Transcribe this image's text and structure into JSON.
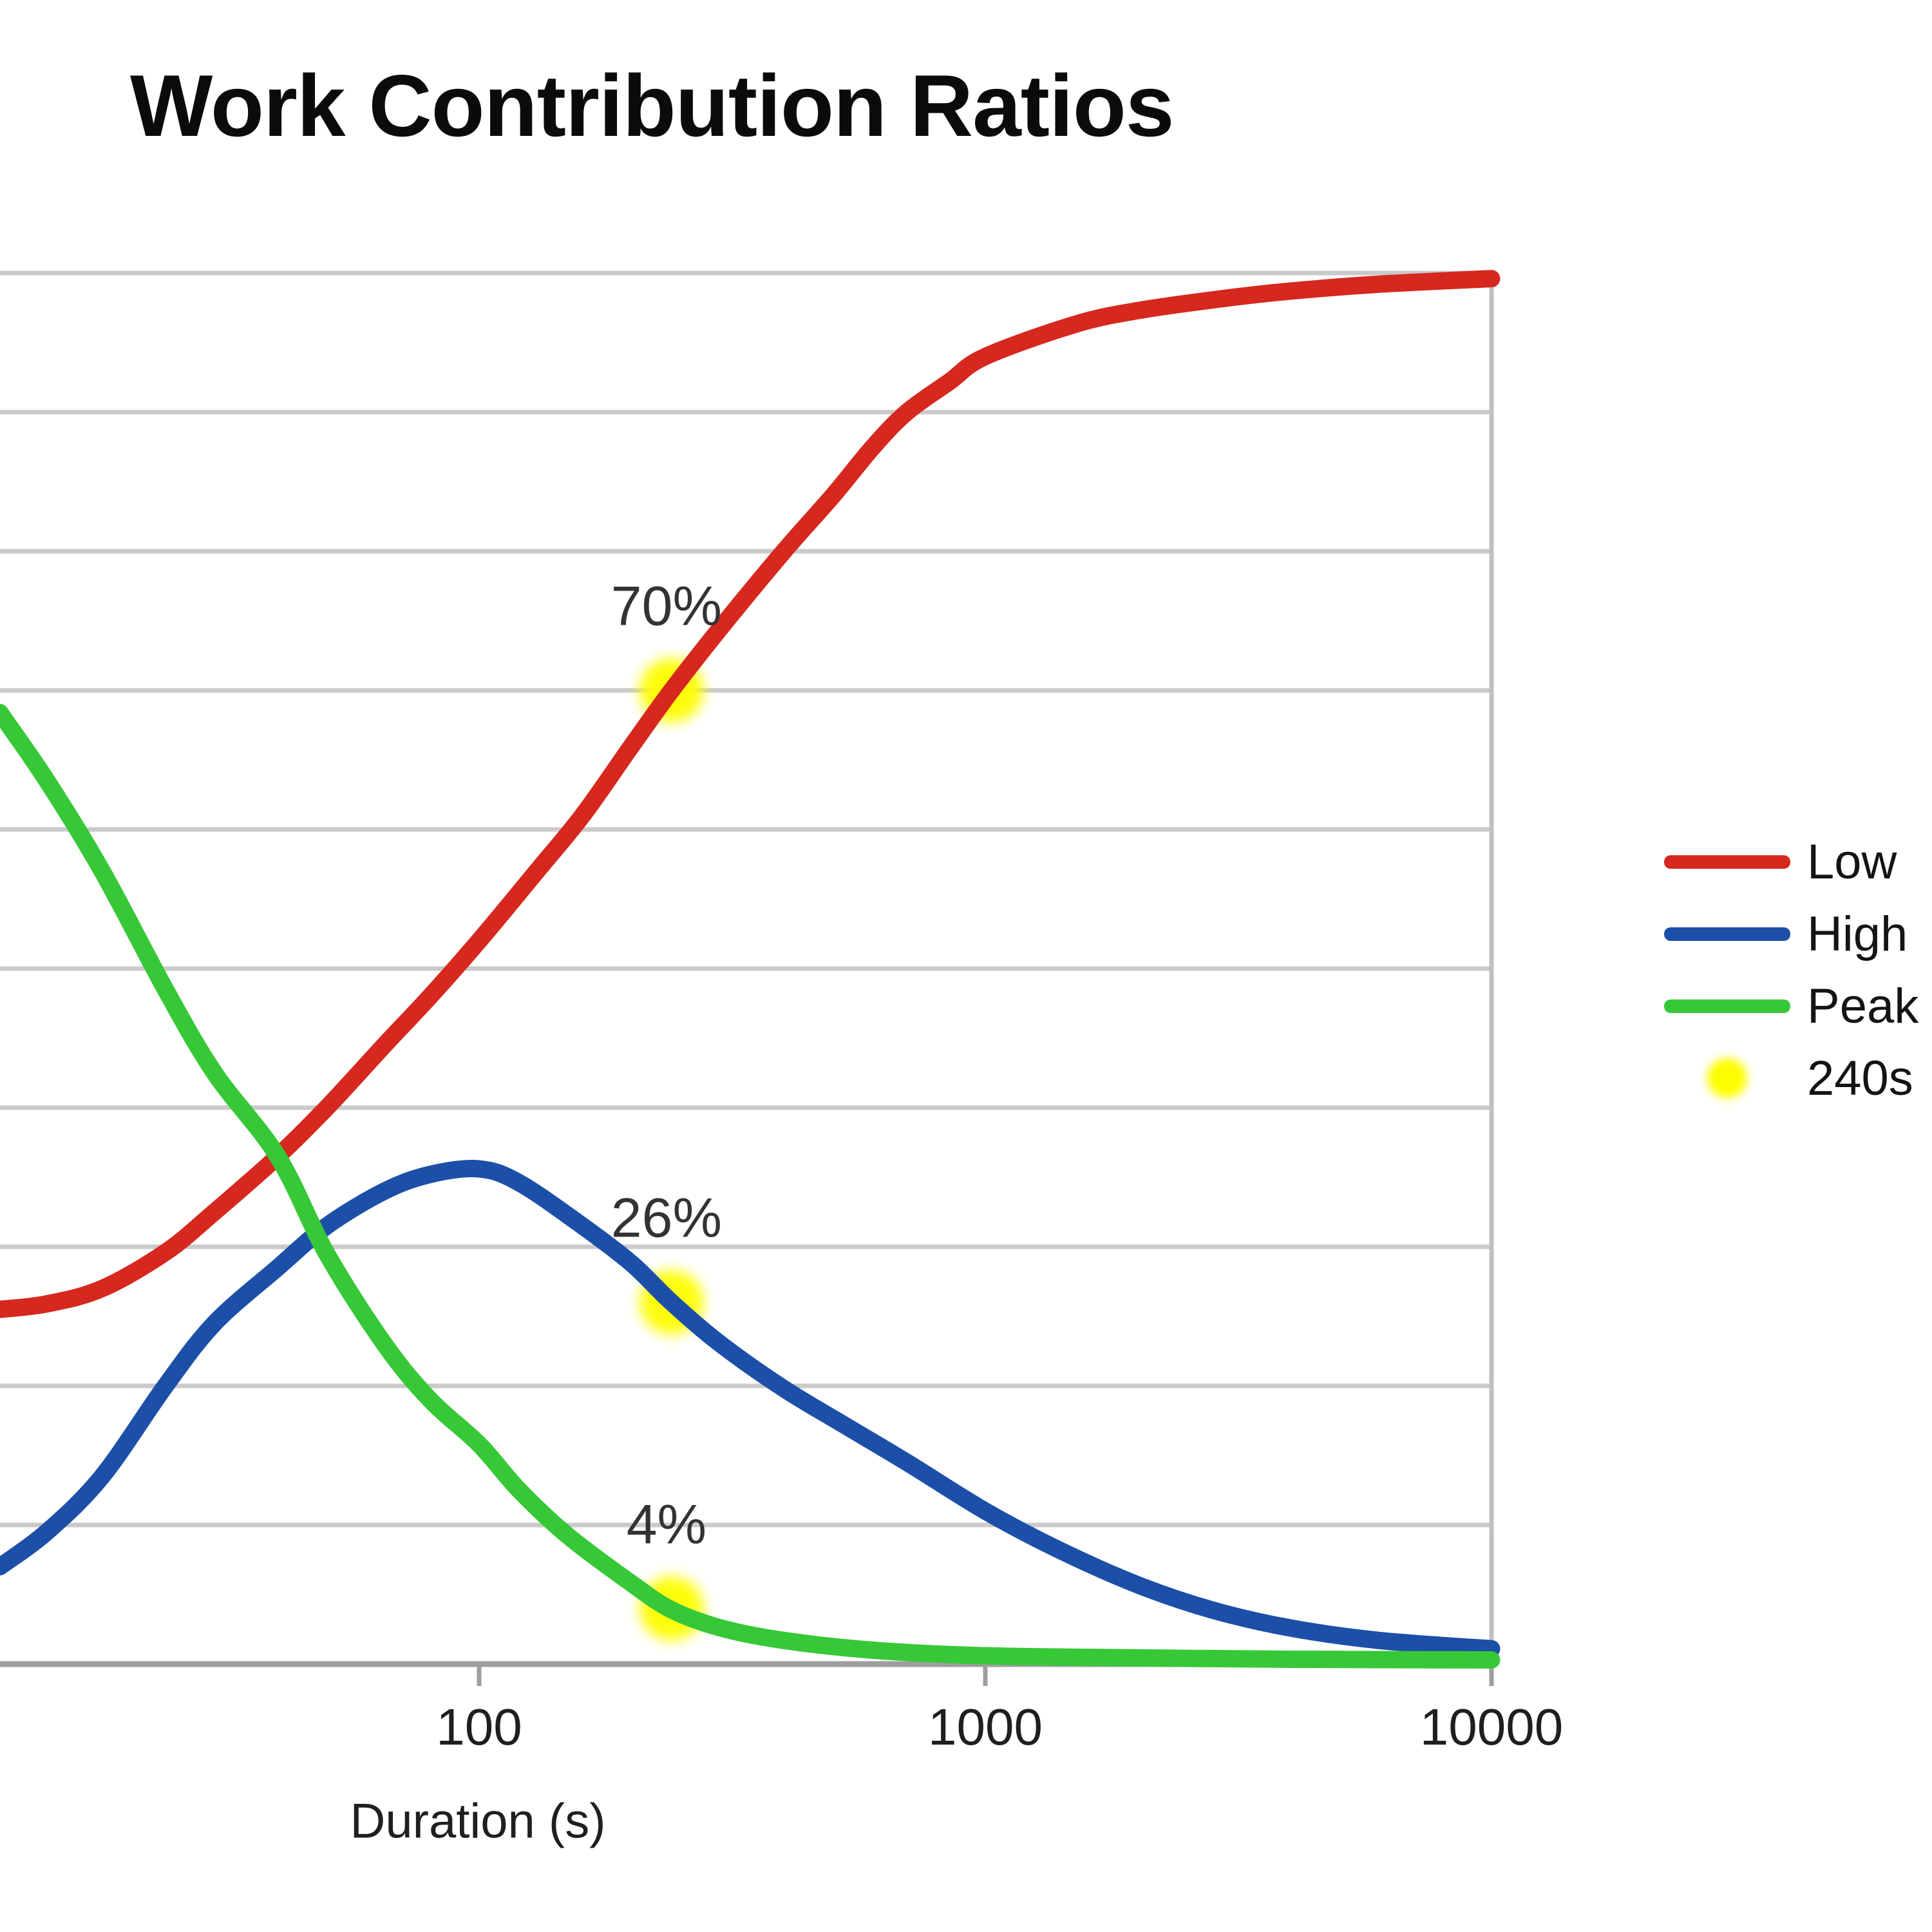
{
  "title": "Work Contribution Ratios",
  "x_axis": {
    "label": "Duration (s)",
    "tick_labels": [
      "100",
      "1000",
      "10000"
    ]
  },
  "legend": {
    "items": [
      {
        "label": "Low",
        "color": "#d6281e",
        "swatch": "line"
      },
      {
        "label": "High",
        "color": "#1c4fa8",
        "swatch": "line"
      },
      {
        "label": "Peak",
        "color": "#37c837",
        "swatch": "line"
      },
      {
        "label": "240s",
        "color": "#fdfd00",
        "swatch": "dot"
      }
    ]
  },
  "annotations": [
    {
      "text": "70%"
    },
    {
      "text": "26%"
    },
    {
      "text": "4%"
    }
  ],
  "colors": {
    "gridline": "#cacaca",
    "axis": "#9e9e9e",
    "plot_border": "#c0c0c0",
    "marker": "#fdfd00"
  },
  "chart_data": {
    "type": "line",
    "title": "Work Contribution Ratios",
    "xlabel": "Duration (s)",
    "ylabel": "",
    "x_scale": "log",
    "x_ticks": [
      100,
      1000,
      10000
    ],
    "x_range_seconds": [
      11.3,
      10000
    ],
    "ylim": [
      0,
      100
    ],
    "y_gridline_step_pct": 10,
    "grid": "horizontal",
    "legend_position": "right",
    "series": [
      {
        "name": "Low",
        "color": "#d6281e",
        "points": [
          [
            11.3,
            25.5
          ],
          [
            14,
            25.9
          ],
          [
            18,
            27
          ],
          [
            24,
            29.6
          ],
          [
            30,
            32.5
          ],
          [
            40,
            36.5
          ],
          [
            50,
            40
          ],
          [
            65,
            44.5
          ],
          [
            80,
            48
          ],
          [
            100,
            52
          ],
          [
            130,
            57
          ],
          [
            160,
            61
          ],
          [
            200,
            66
          ],
          [
            240,
            70
          ],
          [
            300,
            74.5
          ],
          [
            400,
            80
          ],
          [
            500,
            84
          ],
          [
            600,
            87.5
          ],
          [
            700,
            90
          ],
          [
            850,
            92.2
          ],
          [
            1000,
            94
          ],
          [
            1500,
            96.3
          ],
          [
            2000,
            97.3
          ],
          [
            3000,
            98.2
          ],
          [
            4000,
            98.7
          ],
          [
            6000,
            99.2
          ],
          [
            10000,
            99.6
          ]
        ]
      },
      {
        "name": "High",
        "color": "#1c4fa8",
        "points": [
          [
            11.3,
            7
          ],
          [
            14,
            9.5
          ],
          [
            18,
            13.5
          ],
          [
            24,
            20
          ],
          [
            30,
            24.5
          ],
          [
            40,
            28.5
          ],
          [
            50,
            31.5
          ],
          [
            65,
            34
          ],
          [
            80,
            35.2
          ],
          [
            100,
            35.6
          ],
          [
            120,
            34.6
          ],
          [
            160,
            31.5
          ],
          [
            200,
            28.8
          ],
          [
            240,
            26
          ],
          [
            300,
            23
          ],
          [
            400,
            19.8
          ],
          [
            520,
            17.3
          ],
          [
            700,
            14.5
          ],
          [
            1000,
            11
          ],
          [
            1400,
            8.2
          ],
          [
            2000,
            5.7
          ],
          [
            2800,
            3.9
          ],
          [
            4000,
            2.6
          ],
          [
            6000,
            1.7
          ],
          [
            10000,
            1.1
          ]
        ]
      },
      {
        "name": "Peak",
        "color": "#37c837",
        "points": [
          [
            11.3,
            68.4
          ],
          [
            14,
            63.5
          ],
          [
            18,
            57
          ],
          [
            24,
            48.5
          ],
          [
            30,
            42.5
          ],
          [
            40,
            36.5
          ],
          [
            50,
            29.5
          ],
          [
            65,
            23
          ],
          [
            80,
            19
          ],
          [
            100,
            15.8
          ],
          [
            120,
            12.5
          ],
          [
            150,
            9.2
          ],
          [
            200,
            5.8
          ],
          [
            240,
            3.9
          ],
          [
            300,
            2.6
          ],
          [
            400,
            1.7
          ],
          [
            600,
            1.0
          ],
          [
            1000,
            0.6
          ],
          [
            2000,
            0.45
          ],
          [
            4000,
            0.35
          ],
          [
            10000,
            0.3
          ]
        ]
      }
    ],
    "markers": {
      "label": "240s",
      "color": "#fdfd00",
      "duration_s": 240,
      "values": [
        {
          "series": "Low",
          "pct": 70
        },
        {
          "series": "High",
          "pct": 26
        },
        {
          "series": "Peak",
          "pct": 4
        }
      ]
    }
  }
}
